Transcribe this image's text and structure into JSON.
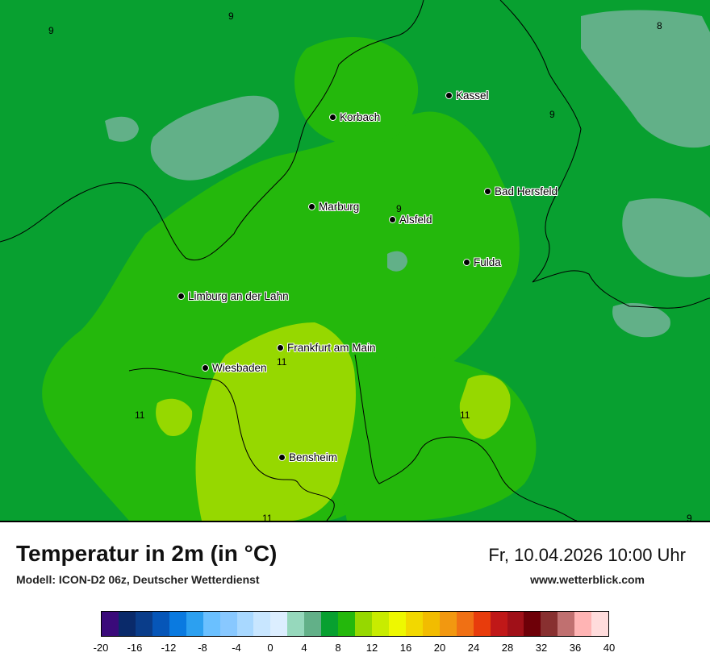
{
  "map": {
    "cities": [
      {
        "name": "Kassel"
      },
      {
        "name": "Korbach"
      },
      {
        "name": "Bad Hersfeld"
      },
      {
        "name": "Marburg"
      },
      {
        "name": "Alsfeld"
      },
      {
        "name": "Fulda"
      },
      {
        "name": "Limburg an der Lahn"
      },
      {
        "name": "Frankfurt am Main"
      },
      {
        "name": "Wiesbaden"
      },
      {
        "name": "Bensheim"
      }
    ],
    "isolines": [
      "9",
      "9",
      "8",
      "9",
      "9",
      "11",
      "11",
      "11",
      "11",
      "9"
    ]
  },
  "footer": {
    "title": "Temperatur in 2m (in °C)",
    "model": "Modell: ICON-D2 06z, Deutscher Wetterdienst",
    "datetime": "Fr, 10.04.2026 10:00 Uhr",
    "website": "www.wetterblick.com"
  },
  "colorbar": {
    "colors": [
      "#3a0a7a",
      "#0a2a6a",
      "#0a3d8a",
      "#0656b8",
      "#0a7ae0",
      "#2ca0f0",
      "#6ac0ff",
      "#88c8ff",
      "#a8d8ff",
      "#c8e6ff",
      "#dceeff",
      "#96d8bc",
      "#62b088",
      "#08a030",
      "#24b80c",
      "#96d800",
      "#c8ec00",
      "#eef800",
      "#f2d800",
      "#f2bc00",
      "#f29810",
      "#f07014",
      "#e83c0c",
      "#c01818",
      "#a01018",
      "#6e0008",
      "#883030",
      "#c07070",
      "#ffb4b4",
      "#ffdcdc"
    ],
    "ticks": [
      "-20",
      "-16",
      "-12",
      "-8",
      "-4",
      "0",
      "4",
      "8",
      "12",
      "16",
      "20",
      "24",
      "28",
      "32",
      "36",
      "40"
    ]
  }
}
